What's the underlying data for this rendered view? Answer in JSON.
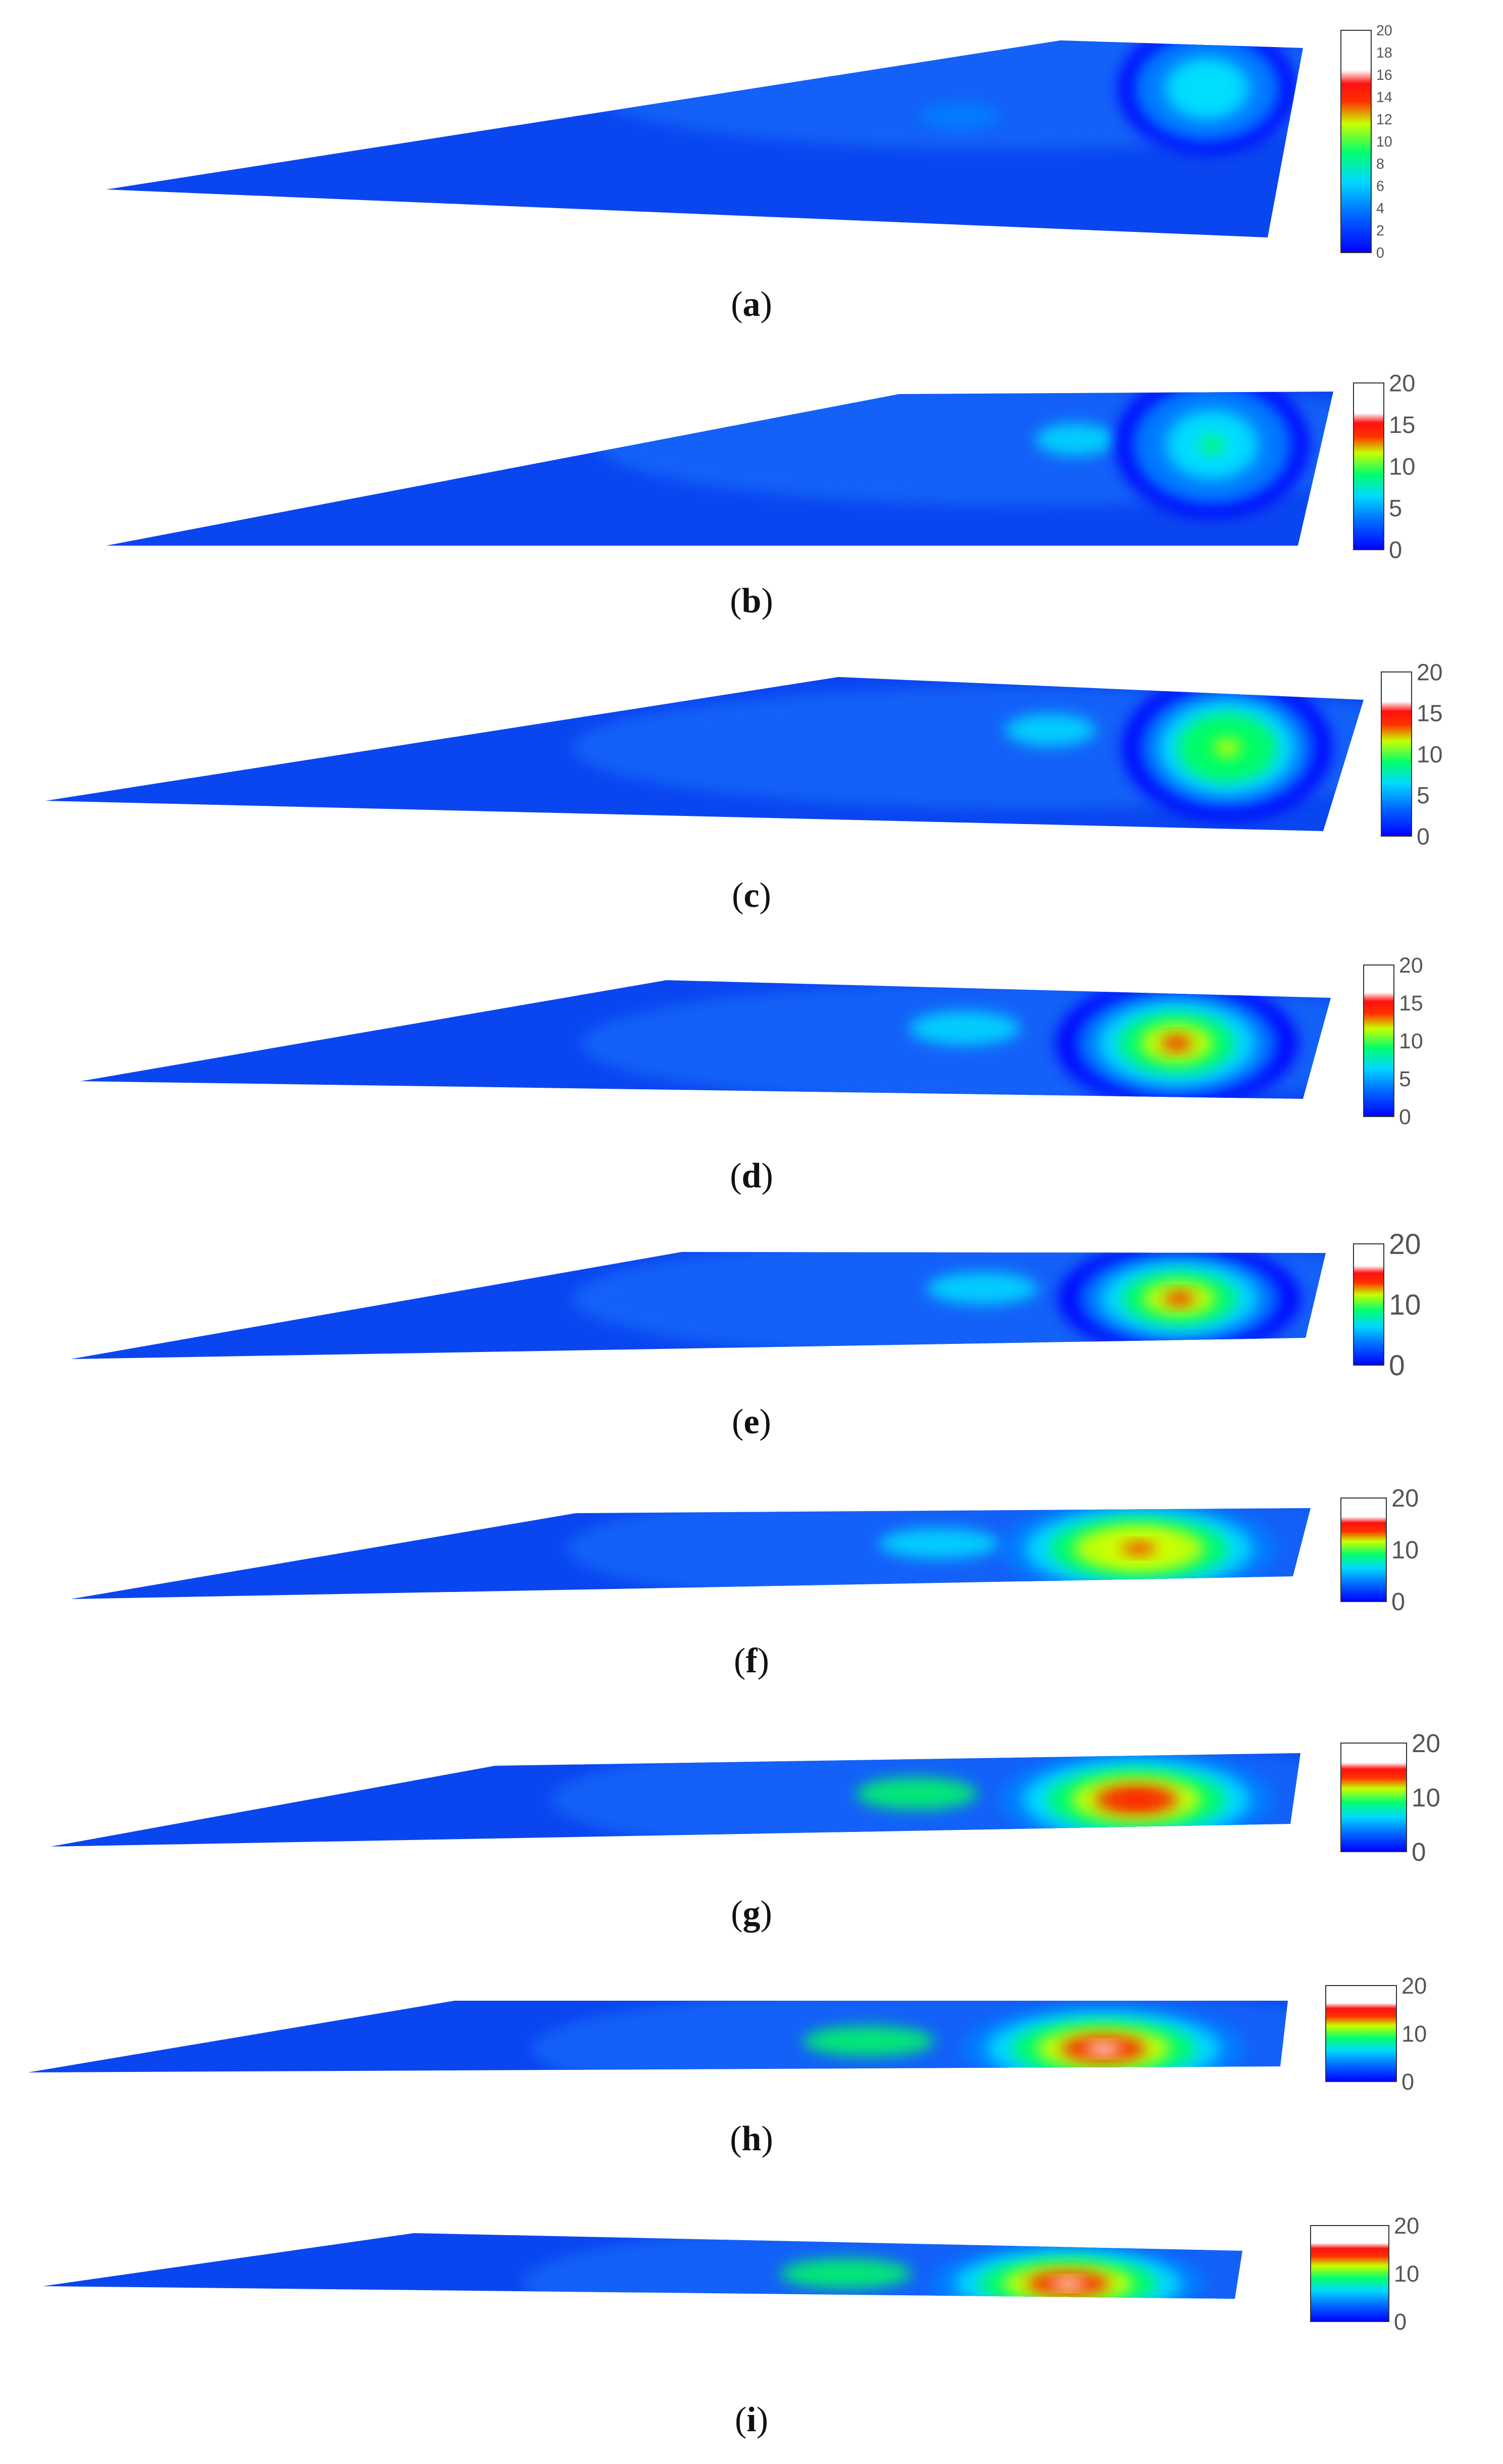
{
  "chart_data": [
    {
      "type": "heatmap",
      "label": "a",
      "colorbar": {
        "min": 0,
        "max": 20,
        "ticks": [
          "0",
          "2",
          "4",
          "6",
          "8",
          "10",
          "12",
          "14",
          "16",
          "18",
          "20"
        ]
      },
      "peak_value": 8,
      "secondary_value": 4
    },
    {
      "type": "heatmap",
      "label": "b",
      "colorbar": {
        "min": 0,
        "max": 20,
        "ticks": [
          "0",
          "5",
          "10",
          "15",
          "20"
        ]
      },
      "peak_value": 9,
      "secondary_value": 5
    },
    {
      "type": "heatmap",
      "label": "c",
      "colorbar": {
        "min": 0,
        "max": 20,
        "ticks": [
          "0",
          "5",
          "10",
          "15",
          "20"
        ]
      },
      "peak_value": 13,
      "secondary_value": 6
    },
    {
      "type": "heatmap",
      "label": "d",
      "colorbar": {
        "min": 0,
        "max": 20,
        "ticks": [
          "0",
          "5",
          "10",
          "15",
          "20"
        ]
      },
      "peak_value": 15,
      "secondary_value": 7
    },
    {
      "type": "heatmap",
      "label": "e",
      "colorbar": {
        "min": 0,
        "max": 20,
        "ticks": [
          "0",
          "10",
          "20"
        ]
      },
      "peak_value": 16,
      "secondary_value": 8
    },
    {
      "type": "heatmap",
      "label": "f",
      "colorbar": {
        "min": 0,
        "max": 20,
        "ticks": [
          "0",
          "10",
          "20"
        ]
      },
      "peak_value": 17,
      "secondary_value": 8
    },
    {
      "type": "heatmap",
      "label": "g",
      "colorbar": {
        "min": 0,
        "max": 20,
        "ticks": [
          "0",
          "10",
          "20"
        ]
      },
      "peak_value": 18,
      "secondary_value": 9
    },
    {
      "type": "heatmap",
      "label": "h",
      "colorbar": {
        "min": 0,
        "max": 20,
        "ticks": [
          "0",
          "10",
          "20"
        ]
      },
      "peak_value": 20,
      "secondary_value": 9
    },
    {
      "type": "heatmap",
      "label": "i",
      "colorbar": {
        "min": 0,
        "max": 20,
        "ticks": [
          "0",
          "10",
          "20"
        ]
      },
      "peak_value": 20,
      "secondary_value": 9
    }
  ],
  "colormap": [
    "#0000ff",
    "#0080ff",
    "#00e0ff",
    "#00ff60",
    "#d0ff00",
    "#ff2000",
    "#ffffff"
  ]
}
